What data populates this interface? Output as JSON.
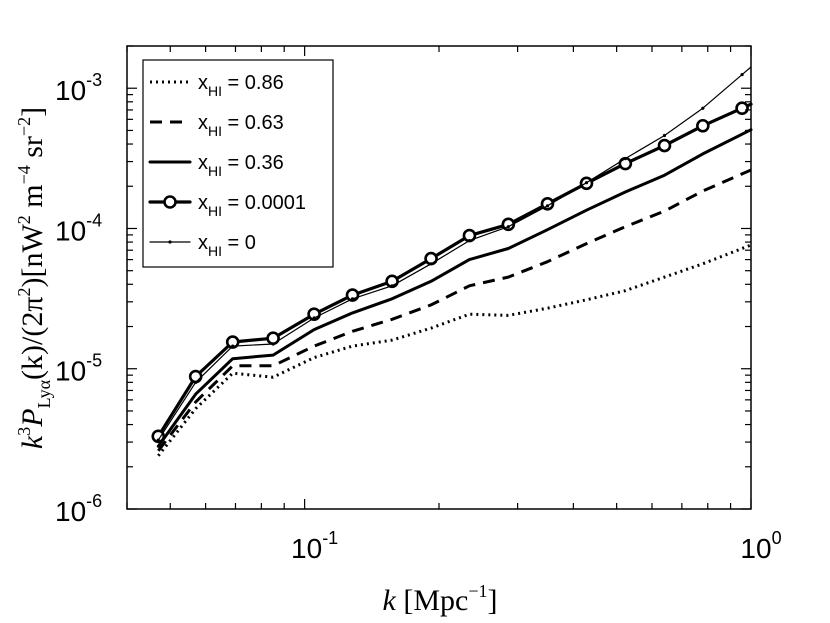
{
  "chart_data": {
    "type": "line",
    "xscale": "log",
    "yscale": "log",
    "xlim": [
      0.04,
      1.0
    ],
    "ylim": [
      1e-06,
      0.002
    ],
    "x": [
      0.047,
      0.057,
      0.069,
      0.085,
      0.105,
      0.128,
      0.157,
      0.192,
      0.234,
      0.286,
      0.35,
      0.428,
      0.523,
      0.64,
      0.78,
      0.955
    ],
    "xticks": [
      {
        "value": 0.1,
        "base": "10",
        "exp": "-1"
      },
      {
        "value": 1,
        "base": "10",
        "exp": "0"
      }
    ],
    "yticks": [
      {
        "value": 1e-06,
        "base": "10",
        "exp": "-6"
      },
      {
        "value": 1e-05,
        "base": "10",
        "exp": "-5"
      },
      {
        "value": 0.0001,
        "base": "10",
        "exp": "-4"
      },
      {
        "value": 0.001,
        "base": "10",
        "exp": "-3"
      }
    ],
    "xlabel": {
      "symbol": "k",
      "unit": "[Mpc",
      "unit_exp": "−1",
      "close": "]"
    },
    "ylabel": {
      "prefix": "k",
      "prefix_exp": "3",
      "p": "P",
      "p_sub": "Lyα",
      "mid": "(k)/(2π",
      "mid_exp": "2",
      "units": ")[nW",
      "u1_exp": "2",
      "u2": " m",
      "u2_exp": "−4",
      "u3": " sr",
      "u3_exp": "−2",
      "close": "]"
    },
    "series": [
      {
        "name": "x_HI = 0.86",
        "label_main": "x",
        "label_sub": "HI",
        "label_rest": " = 0.86",
        "style": "dotted",
        "values": [
          2.4e-06,
          5.2e-06,
          9.3e-06,
          8.7e-06,
          1.2e-05,
          1.45e-05,
          1.6e-05,
          1.95e-05,
          2.45e-05,
          2.4e-05,
          2.7e-05,
          3.1e-05,
          3.6e-05,
          4.5e-05,
          5.6e-05,
          7.2e-05
        ]
      },
      {
        "name": "x_HI = 0.63",
        "label_main": "x",
        "label_sub": "HI",
        "label_rest": " = 0.63",
        "style": "dashed",
        "values": [
          2.6e-06,
          5.8e-06,
          1.05e-05,
          1.05e-05,
          1.45e-05,
          1.85e-05,
          2.25e-05,
          2.85e-05,
          3.9e-05,
          4.5e-05,
          5.8e-05,
          7.8e-05,
          0.000103,
          0.000133,
          0.000185,
          0.000245
        ]
      },
      {
        "name": "x_HI = 0.36",
        "label_main": "x",
        "label_sub": "HI",
        "label_rest": " = 0.36",
        "style": "solid",
        "values": [
          2.8e-06,
          6.6e-06,
          1.18e-05,
          1.25e-05,
          1.9e-05,
          2.5e-05,
          3.15e-05,
          4.2e-05,
          6e-05,
          7.2e-05,
          9.8e-05,
          0.000135,
          0.000182,
          0.00024,
          0.00034,
          0.00047
        ]
      },
      {
        "name": "x_HI = 0.0001",
        "label_main": "x",
        "label_sub": "HI",
        "label_rest": " = 0.0001",
        "style": "circle",
        "values": [
          3.3e-06,
          8.8e-06,
          1.55e-05,
          1.65e-05,
          2.45e-05,
          3.35e-05,
          4.2e-05,
          6.1e-05,
          8.9e-05,
          0.000107,
          0.00015,
          0.00021,
          0.00029,
          0.00039,
          0.00054,
          0.00072
        ]
      },
      {
        "name": "x_HI = 0",
        "label_main": "x",
        "label_sub": "HI",
        "label_rest": " = 0",
        "style": "thin",
        "values": [
          3.1e-06,
          8e-06,
          1.45e-05,
          1.5e-05,
          2.3e-05,
          3.15e-05,
          3.9e-05,
          5.6e-05,
          8.2e-05,
          0.000103,
          0.000145,
          0.000212,
          0.000315,
          0.00046,
          0.00072,
          0.00125
        ]
      }
    ]
  }
}
